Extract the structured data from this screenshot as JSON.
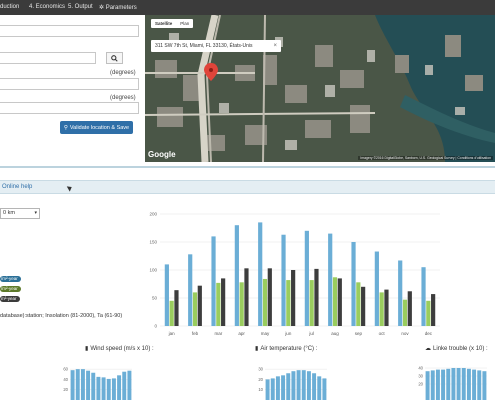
{
  "nav": {
    "items": [
      "duction",
      "4. Economics",
      "5. Output",
      "Parameters"
    ]
  },
  "location": {
    "units": [
      "(degrees)",
      "(degrees)"
    ],
    "validate_label": "Validate location & Save"
  },
  "map": {
    "tabs": [
      "Satellite",
      "Plan"
    ],
    "address": "311 SW 7th St, Miami, FL 33130, États-Unis",
    "credit": "Imagery ©2016 DigitalGlobe, Sanborn, U.S. Geological Survey | Conditions d'utilisation",
    "logo": "Google"
  },
  "help": {
    "label": "Online help"
  },
  "resolution": {
    "value": "0 km"
  },
  "units": {
    "pills": [
      "/m²-year",
      "/m²-year",
      "m²-year"
    ]
  },
  "source_note": "database):station; Insolation (81-2000), Ta (61-90)",
  "colors": {
    "blue": "#6baed6",
    "green": "#9acd5e",
    "dark": "#3d3d3d",
    "pill_blue": "#2a6f97",
    "pill_green": "#5d7a2a"
  },
  "chart_data": [
    {
      "type": "bar",
      "categories": [
        "jan",
        "feb",
        "mar",
        "apr",
        "may",
        "jun",
        "jul",
        "aug",
        "sep",
        "oct",
        "nov",
        "dec"
      ],
      "ylim": [
        0,
        200
      ],
      "yticks": [
        "200",
        "150",
        "100",
        "50",
        "0"
      ],
      "series": [
        {
          "values": [
            110,
            128,
            160,
            180,
            185,
            163,
            170,
            165,
            150,
            133,
            117,
            105
          ]
        },
        {
          "values": [
            45,
            60,
            77,
            78,
            84,
            82,
            82,
            87,
            78,
            60,
            47,
            45
          ]
        },
        {
          "values": [
            64,
            72,
            85,
            103,
            103,
            100,
            102,
            85,
            70,
            65,
            62,
            57
          ]
        }
      ]
    },
    {
      "type": "bar",
      "title": "Wind speed (m/s x 10) :",
      "yticks": [
        "60",
        "40",
        "20"
      ],
      "ylim": [
        0,
        70
      ],
      "values": [
        58,
        60,
        60,
        57,
        53,
        45,
        44,
        41,
        42,
        48,
        55,
        57
      ]
    },
    {
      "type": "bar",
      "title": "Air temperature (°C) :",
      "yticks": [
        "30",
        "20",
        "10"
      ],
      "ylim": [
        0,
        35
      ],
      "values": [
        20,
        21,
        23,
        24,
        26,
        28,
        29,
        29,
        28,
        26,
        23,
        21
      ]
    },
    {
      "type": "bar",
      "title": "Linke trouble (x 10) :",
      "yticks": [
        "40",
        "30",
        "20"
      ],
      "ylim": [
        0,
        45
      ],
      "values": [
        36,
        37,
        38,
        38,
        39,
        40,
        40,
        40,
        39,
        38,
        37,
        36
      ]
    }
  ]
}
